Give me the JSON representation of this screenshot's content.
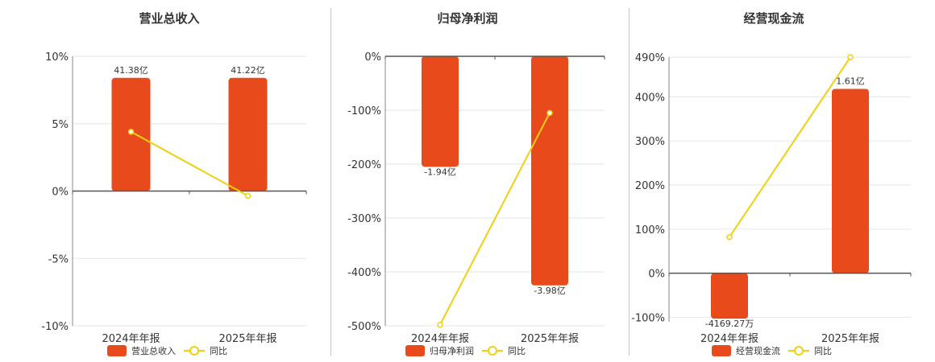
{
  "colors": {
    "bar": "#E84A1C",
    "line": "#F0D010",
    "axis": "#555555",
    "grid": "#e6e6e6",
    "text": "#333333"
  },
  "chart_data": [
    {
      "type": "bar",
      "title": "营业总收入",
      "categories": [
        "2024年年报",
        "2025年年报"
      ],
      "ylim": [
        -10,
        10
      ],
      "yticks": [
        10,
        5,
        0,
        -5,
        -10
      ],
      "ytick_labels": [
        "10%",
        "5%",
        "0%",
        "-5%",
        "-10%"
      ],
      "bar_values": [
        8.4,
        8.4
      ],
      "bar_labels": [
        "41.38亿",
        "41.22亿"
      ],
      "line_values": [
        4.4,
        -0.35
      ],
      "legend": {
        "bar": "营业总收入",
        "line": "同比"
      },
      "legend_position": "bottom",
      "grid": true
    },
    {
      "type": "bar",
      "title": "归母净利润",
      "categories": [
        "2024年年报",
        "2025年年报"
      ],
      "ylim": [
        -500,
        0
      ],
      "yticks": [
        0,
        -100,
        -200,
        -300,
        -400,
        -500
      ],
      "ytick_labels": [
        "0%",
        "-100%",
        "-200%",
        "-300%",
        "-400%",
        "-500%"
      ],
      "bar_values": [
        -205,
        -425
      ],
      "bar_labels": [
        "-1.94亿",
        "-3.98亿"
      ],
      "line_values": [
        -498,
        -105
      ],
      "legend": {
        "bar": "归母净利润",
        "line": "同比"
      },
      "legend_position": "bottom",
      "grid": true
    },
    {
      "type": "bar",
      "title": "经营现金流",
      "categories": [
        "2024年年报",
        "2025年年报"
      ],
      "ylim": [
        -110,
        490
      ],
      "yticks": [
        490,
        400,
        300,
        200,
        100,
        0,
        -100
      ],
      "ytick_labels": [
        "490%",
        "400%",
        "300%",
        "200%",
        "100%",
        "0%",
        "-100%"
      ],
      "bar_values": [
        -103,
        418
      ],
      "bar_labels": [
        "-4169.27万",
        "1.61亿"
      ],
      "line_values": [
        82,
        490
      ],
      "legend": {
        "bar": "经营现金流",
        "line": "同比"
      },
      "legend_position": "bottom",
      "grid": true
    }
  ]
}
